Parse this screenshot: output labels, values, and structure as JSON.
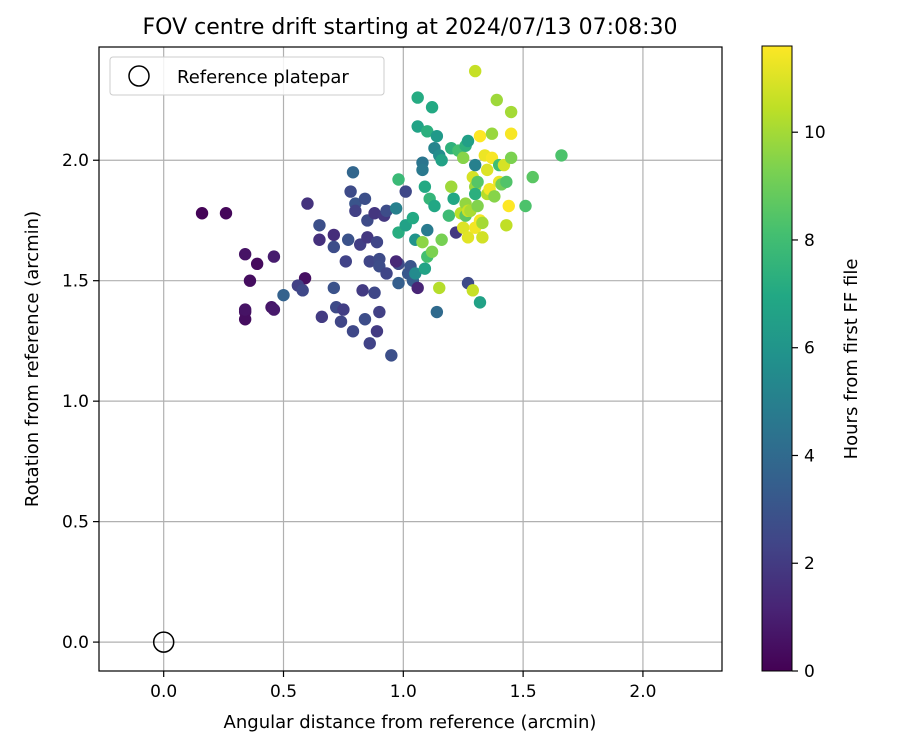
{
  "chart_data": {
    "type": "scatter",
    "title": "FOV centre drift starting at 2024/07/13 07:08:30",
    "xlabel": "Angular distance from reference (arcmin)",
    "ylabel": "Rotation from reference (arcmin)",
    "xlim": [
      -0.27,
      2.33
    ],
    "ylim": [
      -0.12,
      2.47
    ],
    "xticks": [
      0.0,
      0.5,
      1.0,
      1.5,
      2.0
    ],
    "xtick_labels": [
      "0.0",
      "0.5",
      "1.0",
      "1.5",
      "2.0"
    ],
    "yticks": [
      0.0,
      0.5,
      1.0,
      1.5,
      2.0
    ],
    "ytick_labels": [
      "0.0",
      "0.5",
      "1.0",
      "1.5",
      "2.0"
    ],
    "grid": true,
    "legend": {
      "position": "top-left",
      "entries": [
        "Reference platepar"
      ]
    },
    "reference_point": {
      "x": 0.0,
      "y": 0.0,
      "label": "Reference platepar"
    },
    "colorbar": {
      "label": "Hours from first FF file",
      "colormap": "viridis",
      "range": [
        0,
        11.6
      ],
      "ticks": [
        0,
        2,
        4,
        6,
        8,
        10
      ],
      "tick_labels": [
        "0",
        "2",
        "4",
        "6",
        "8",
        "10"
      ]
    },
    "points": [
      {
        "x": 0.16,
        "y": 1.78,
        "c": 0.1
      },
      {
        "x": 0.26,
        "y": 1.78,
        "c": 0.2
      },
      {
        "x": 0.34,
        "y": 1.61,
        "c": 0.6
      },
      {
        "x": 0.39,
        "y": 1.57,
        "c": 0.3
      },
      {
        "x": 0.36,
        "y": 1.5,
        "c": 0.4
      },
      {
        "x": 0.34,
        "y": 1.37,
        "c": 0.5
      },
      {
        "x": 0.34,
        "y": 1.34,
        "c": 0.4
      },
      {
        "x": 0.34,
        "y": 1.38,
        "c": 0.6
      },
      {
        "x": 0.45,
        "y": 1.39,
        "c": 0.7
      },
      {
        "x": 0.46,
        "y": 1.38,
        "c": 0.8
      },
      {
        "x": 0.46,
        "y": 1.6,
        "c": 0.9
      },
      {
        "x": 0.59,
        "y": 1.51,
        "c": 0.5
      },
      {
        "x": 0.5,
        "y": 1.44,
        "c": 3.6
      },
      {
        "x": 0.56,
        "y": 1.48,
        "c": 2.2
      },
      {
        "x": 0.58,
        "y": 1.46,
        "c": 2.5
      },
      {
        "x": 0.6,
        "y": 1.82,
        "c": 1.7
      },
      {
        "x": 0.65,
        "y": 1.73,
        "c": 2.8
      },
      {
        "x": 0.65,
        "y": 1.67,
        "c": 1.6
      },
      {
        "x": 0.66,
        "y": 1.35,
        "c": 2.0
      },
      {
        "x": 0.71,
        "y": 1.69,
        "c": 1.5
      },
      {
        "x": 0.71,
        "y": 1.64,
        "c": 2.7
      },
      {
        "x": 0.71,
        "y": 1.47,
        "c": 2.9
      },
      {
        "x": 0.72,
        "y": 1.39,
        "c": 2.6
      },
      {
        "x": 0.74,
        "y": 1.33,
        "c": 2.4
      },
      {
        "x": 0.75,
        "y": 1.38,
        "c": 2.1
      },
      {
        "x": 0.76,
        "y": 1.58,
        "c": 2.3
      },
      {
        "x": 0.77,
        "y": 1.67,
        "c": 2.9
      },
      {
        "x": 0.78,
        "y": 1.87,
        "c": 2.6
      },
      {
        "x": 0.79,
        "y": 1.95,
        "c": 3.8
      },
      {
        "x": 0.8,
        "y": 1.82,
        "c": 3.0
      },
      {
        "x": 0.8,
        "y": 1.79,
        "c": 2.2
      },
      {
        "x": 0.79,
        "y": 1.29,
        "c": 2.5
      },
      {
        "x": 0.82,
        "y": 1.65,
        "c": 2.1
      },
      {
        "x": 0.83,
        "y": 1.46,
        "c": 2.0
      },
      {
        "x": 0.84,
        "y": 1.34,
        "c": 2.7
      },
      {
        "x": 0.84,
        "y": 1.84,
        "c": 2.8
      },
      {
        "x": 0.85,
        "y": 1.75,
        "c": 2.6
      },
      {
        "x": 0.85,
        "y": 1.68,
        "c": 1.9
      },
      {
        "x": 0.86,
        "y": 1.58,
        "c": 2.4
      },
      {
        "x": 0.86,
        "y": 1.24,
        "c": 2.3
      },
      {
        "x": 0.88,
        "y": 1.45,
        "c": 2.5
      },
      {
        "x": 0.88,
        "y": 1.78,
        "c": 1.8
      },
      {
        "x": 0.89,
        "y": 1.66,
        "c": 2.4
      },
      {
        "x": 0.9,
        "y": 1.59,
        "c": 2.6
      },
      {
        "x": 0.9,
        "y": 1.56,
        "c": 2.7
      },
      {
        "x": 0.9,
        "y": 1.37,
        "c": 2.2
      },
      {
        "x": 0.89,
        "y": 1.29,
        "c": 2.0
      },
      {
        "x": 0.92,
        "y": 1.77,
        "c": 1.9
      },
      {
        "x": 0.93,
        "y": 1.79,
        "c": 2.7
      },
      {
        "x": 0.93,
        "y": 1.53,
        "c": 2.4
      },
      {
        "x": 0.95,
        "y": 1.19,
        "c": 2.8
      },
      {
        "x": 0.98,
        "y": 1.57,
        "c": 2.6
      },
      {
        "x": 0.98,
        "y": 1.49,
        "c": 3.5
      },
      {
        "x": 0.97,
        "y": 1.58,
        "c": 1.3
      },
      {
        "x": 0.97,
        "y": 1.8,
        "c": 5.0
      },
      {
        "x": 0.98,
        "y": 1.92,
        "c": 7.8
      },
      {
        "x": 0.98,
        "y": 1.7,
        "c": 7.2
      },
      {
        "x": 1.01,
        "y": 1.73,
        "c": 6.6
      },
      {
        "x": 1.01,
        "y": 1.87,
        "c": 2.5
      },
      {
        "x": 1.02,
        "y": 1.53,
        "c": 3.2
      },
      {
        "x": 1.03,
        "y": 1.56,
        "c": 3.0
      },
      {
        "x": 1.04,
        "y": 1.5,
        "c": 3.4
      },
      {
        "x": 1.04,
        "y": 1.76,
        "c": 7.0
      },
      {
        "x": 1.05,
        "y": 1.67,
        "c": 5.9
      },
      {
        "x": 1.05,
        "y": 1.53,
        "c": 5.5
      },
      {
        "x": 1.06,
        "y": 1.47,
        "c": 1.2
      },
      {
        "x": 1.06,
        "y": 2.14,
        "c": 6.7
      },
      {
        "x": 1.06,
        "y": 2.26,
        "c": 7.1
      },
      {
        "x": 1.08,
        "y": 1.99,
        "c": 4.5
      },
      {
        "x": 1.08,
        "y": 1.96,
        "c": 4.7
      },
      {
        "x": 1.08,
        "y": 1.66,
        "c": 9.6
      },
      {
        "x": 1.09,
        "y": 1.89,
        "c": 7.0
      },
      {
        "x": 1.09,
        "y": 1.55,
        "c": 6.7
      },
      {
        "x": 1.1,
        "y": 1.71,
        "c": 4.8
      },
      {
        "x": 1.1,
        "y": 1.6,
        "c": 8.1
      },
      {
        "x": 1.1,
        "y": 2.12,
        "c": 7.3
      },
      {
        "x": 1.11,
        "y": 1.84,
        "c": 7.6
      },
      {
        "x": 1.12,
        "y": 1.62,
        "c": 9.3
      },
      {
        "x": 1.12,
        "y": 2.22,
        "c": 7.0
      },
      {
        "x": 1.13,
        "y": 1.81,
        "c": 6.9
      },
      {
        "x": 1.13,
        "y": 2.05,
        "c": 5.2
      },
      {
        "x": 1.14,
        "y": 2.1,
        "c": 6.2
      },
      {
        "x": 1.14,
        "y": 1.37,
        "c": 4.0
      },
      {
        "x": 1.15,
        "y": 2.02,
        "c": 5.6
      },
      {
        "x": 1.15,
        "y": 1.47,
        "c": 10.3
      },
      {
        "x": 1.16,
        "y": 1.67,
        "c": 9.2
      },
      {
        "x": 1.16,
        "y": 2.0,
        "c": 6.6
      },
      {
        "x": 1.19,
        "y": 1.77,
        "c": 7.9
      },
      {
        "x": 1.2,
        "y": 1.89,
        "c": 9.9
      },
      {
        "x": 1.2,
        "y": 2.05,
        "c": 7.4
      },
      {
        "x": 1.21,
        "y": 1.84,
        "c": 6.9
      },
      {
        "x": 1.22,
        "y": 1.7,
        "c": 1.9
      },
      {
        "x": 1.23,
        "y": 2.04,
        "c": 8.1
      },
      {
        "x": 1.24,
        "y": 1.78,
        "c": 10.4
      },
      {
        "x": 1.25,
        "y": 1.72,
        "c": 11.0
      },
      {
        "x": 1.25,
        "y": 2.01,
        "c": 9.5
      },
      {
        "x": 1.26,
        "y": 2.06,
        "c": 7.4
      },
      {
        "x": 1.26,
        "y": 1.82,
        "c": 9.7
      },
      {
        "x": 1.26,
        "y": 1.77,
        "c": 8.6
      },
      {
        "x": 1.27,
        "y": 2.08,
        "c": 6.5
      },
      {
        "x": 1.27,
        "y": 1.49,
        "c": 2.6
      },
      {
        "x": 1.27,
        "y": 1.79,
        "c": 10.7
      },
      {
        "x": 1.27,
        "y": 1.68,
        "c": 11.1
      },
      {
        "x": 1.28,
        "y": 1.79,
        "c": 10.1
      },
      {
        "x": 1.29,
        "y": 1.93,
        "c": 10.9
      },
      {
        "x": 1.29,
        "y": 1.46,
        "c": 10.6
      },
      {
        "x": 1.3,
        "y": 1.72,
        "c": 11.4
      },
      {
        "x": 1.3,
        "y": 1.89,
        "c": 9.8
      },
      {
        "x": 1.3,
        "y": 1.98,
        "c": 5.0
      },
      {
        "x": 1.3,
        "y": 2.37,
        "c": 10.6
      },
      {
        "x": 1.3,
        "y": 1.86,
        "c": 7.3
      },
      {
        "x": 1.31,
        "y": 1.81,
        "c": 9.4
      },
      {
        "x": 1.31,
        "y": 1.91,
        "c": 8.5
      },
      {
        "x": 1.32,
        "y": 1.75,
        "c": 11.5
      },
      {
        "x": 1.32,
        "y": 1.41,
        "c": 6.6
      },
      {
        "x": 1.32,
        "y": 2.1,
        "c": 11.6
      },
      {
        "x": 1.33,
        "y": 1.74,
        "c": 10.0
      },
      {
        "x": 1.33,
        "y": 1.68,
        "c": 10.8
      },
      {
        "x": 1.34,
        "y": 2.02,
        "c": 11.3
      },
      {
        "x": 1.35,
        "y": 1.96,
        "c": 11.0
      },
      {
        "x": 1.35,
        "y": 1.86,
        "c": 10.3
      },
      {
        "x": 1.36,
        "y": 1.88,
        "c": 11.4
      },
      {
        "x": 1.37,
        "y": 2.11,
        "c": 9.8
      },
      {
        "x": 1.37,
        "y": 2.01,
        "c": 11.5
      },
      {
        "x": 1.38,
        "y": 1.85,
        "c": 9.5
      },
      {
        "x": 1.39,
        "y": 2.25,
        "c": 9.9
      },
      {
        "x": 1.4,
        "y": 1.98,
        "c": 8.0
      },
      {
        "x": 1.4,
        "y": 1.91,
        "c": 11.2
      },
      {
        "x": 1.41,
        "y": 1.9,
        "c": 9.1
      },
      {
        "x": 1.42,
        "y": 1.98,
        "c": 10.9
      },
      {
        "x": 1.43,
        "y": 1.73,
        "c": 10.5
      },
      {
        "x": 1.43,
        "y": 1.91,
        "c": 8.4
      },
      {
        "x": 1.44,
        "y": 1.81,
        "c": 11.6
      },
      {
        "x": 1.45,
        "y": 2.01,
        "c": 9.3
      },
      {
        "x": 1.45,
        "y": 2.2,
        "c": 10.0
      },
      {
        "x": 1.45,
        "y": 2.11,
        "c": 11.5
      },
      {
        "x": 1.51,
        "y": 1.81,
        "c": 8.3
      },
      {
        "x": 1.54,
        "y": 1.93,
        "c": 8.6
      },
      {
        "x": 1.66,
        "y": 2.02,
        "c": 8.3
      }
    ]
  }
}
